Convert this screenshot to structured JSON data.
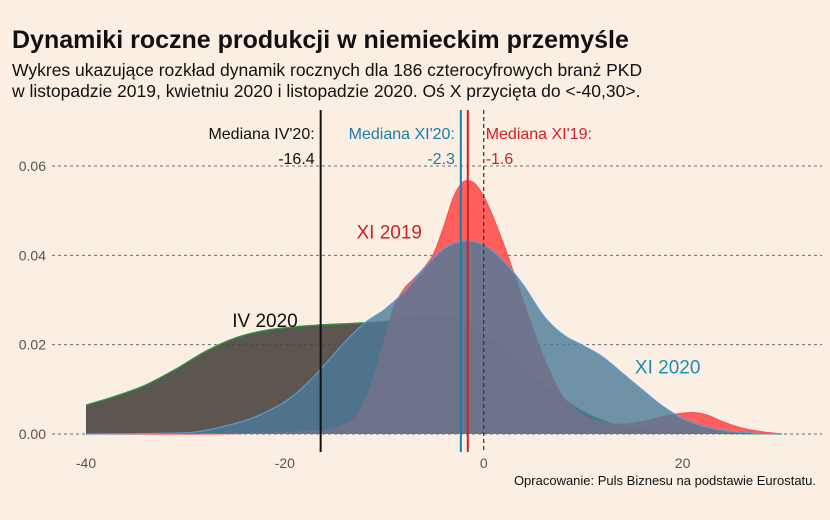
{
  "title": "Dynamiki roczne produkcji w niemieckim przemyśle",
  "subtitle_line1": "Wykres ukazujące rozkład dynamik rocznych dla 186 czterocyfrowych branż PKD",
  "subtitle_line2": "w listopadzie 2019, kwietniu 2020 i listopadzie 2020. Oś X przycięta do <-40,30>.",
  "caption": "Opracowanie: Puls Biznesu na podstawie Eurostatu.",
  "chart_data": {
    "type": "area",
    "subtype": "density",
    "xlim": [
      -40,
      30
    ],
    "ylim": [
      0,
      0.062
    ],
    "x_ticks": [
      -40,
      -20,
      0,
      20
    ],
    "y_ticks": [
      0,
      0.02,
      0.04,
      0.06
    ],
    "x_tick_labels": [
      "-40",
      "-20",
      "0",
      "20"
    ],
    "y_tick_labels": [
      "0.00",
      "0.02",
      "0.04",
      "0.06"
    ],
    "grid": "horizontal-dashed",
    "series": [
      {
        "name": "IV 2020",
        "fill": "#4a4440",
        "stroke": "#2e9e3a",
        "opacity": 0.9,
        "label_at": [
          -22,
          0.024
        ],
        "label_color": "#111111",
        "points": [
          [
            -40,
            0.0065
          ],
          [
            -37,
            0.0085
          ],
          [
            -34,
            0.011
          ],
          [
            -31,
            0.0145
          ],
          [
            -28,
            0.0185
          ],
          [
            -25,
            0.0215
          ],
          [
            -22,
            0.0232
          ],
          [
            -19,
            0.024
          ],
          [
            -16,
            0.0245
          ],
          [
            -13,
            0.0248
          ],
          [
            -10,
            0.0252
          ],
          [
            -8,
            0.0259
          ],
          [
            -6,
            0.0265
          ],
          [
            -4,
            0.0264
          ],
          [
            -2,
            0.0252
          ],
          [
            0,
            0.0225
          ],
          [
            2,
            0.019
          ],
          [
            4,
            0.0148
          ],
          [
            6,
            0.011
          ],
          [
            8,
            0.0078
          ],
          [
            10,
            0.005
          ],
          [
            12,
            0.003
          ],
          [
            14,
            0.0015
          ],
          [
            16,
            0.0008
          ],
          [
            20,
            0.0003
          ],
          [
            25,
            0.0001
          ],
          [
            30,
            0
          ]
        ]
      },
      {
        "name": "XI 2019",
        "fill": "#ff5050",
        "stroke": "#ff5050",
        "opacity": 0.9,
        "label_at": [
          -9.5,
          0.0438
        ],
        "label_color": "#d42020",
        "points": [
          [
            -40,
            0
          ],
          [
            -30,
            0
          ],
          [
            -25,
            0.0001
          ],
          [
            -20,
            0.0003
          ],
          [
            -17,
            0.0007
          ],
          [
            -15,
            0.0012
          ],
          [
            -13,
            0.0035
          ],
          [
            -12,
            0.007
          ],
          [
            -11,
            0.013
          ],
          [
            -10,
            0.021
          ],
          [
            -9,
            0.0285
          ],
          [
            -8,
            0.0325
          ],
          [
            -7,
            0.0348
          ],
          [
            -6,
            0.0372
          ],
          [
            -5,
            0.0405
          ],
          [
            -4,
            0.0465
          ],
          [
            -3,
            0.0532
          ],
          [
            -2,
            0.0565
          ],
          [
            -1,
            0.0562
          ],
          [
            0,
            0.0532
          ],
          [
            1,
            0.0482
          ],
          [
            2,
            0.0425
          ],
          [
            3,
            0.0362
          ],
          [
            4,
            0.0295
          ],
          [
            5,
            0.0232
          ],
          [
            6,
            0.0172
          ],
          [
            7,
            0.0122
          ],
          [
            8,
            0.0082
          ],
          [
            10,
            0.0042
          ],
          [
            12,
            0.0025
          ],
          [
            14,
            0.0022
          ],
          [
            16,
            0.0028
          ],
          [
            18,
            0.0038
          ],
          [
            19.5,
            0.0045
          ],
          [
            21,
            0.0048
          ],
          [
            22.5,
            0.0042
          ],
          [
            24,
            0.0028
          ],
          [
            26,
            0.0013
          ],
          [
            28,
            0.0005
          ],
          [
            30,
            0
          ]
        ]
      },
      {
        "name": "XI 2020",
        "fill": "#4c7a98",
        "stroke": "#5a9bd8",
        "opacity": 0.8,
        "label_at": [
          18.5,
          0.0136
        ],
        "label_color": "#1a8fb5",
        "points": [
          [
            -40,
            0
          ],
          [
            -35,
            0.0001
          ],
          [
            -30,
            0.0003
          ],
          [
            -28,
            0.0008
          ],
          [
            -26,
            0.0018
          ],
          [
            -24,
            0.003
          ],
          [
            -22,
            0.0048
          ],
          [
            -20,
            0.0072
          ],
          [
            -18,
            0.0108
          ],
          [
            -16,
            0.0155
          ],
          [
            -14,
            0.0205
          ],
          [
            -12,
            0.0248
          ],
          [
            -10,
            0.0278
          ],
          [
            -8,
            0.0318
          ],
          [
            -6,
            0.037
          ],
          [
            -4,
            0.0415
          ],
          [
            -2,
            0.0432
          ],
          [
            0,
            0.0423
          ],
          [
            2,
            0.0387
          ],
          [
            4,
            0.0333
          ],
          [
            6,
            0.0265
          ],
          [
            8,
            0.0222
          ],
          [
            10,
            0.0198
          ],
          [
            12,
            0.0172
          ],
          [
            14,
            0.0135
          ],
          [
            16,
            0.0098
          ],
          [
            18,
            0.0062
          ],
          [
            20,
            0.0035
          ],
          [
            22,
            0.0018
          ],
          [
            24,
            0.0008
          ],
          [
            26,
            0.0004
          ],
          [
            28,
            0.0001
          ],
          [
            30,
            0
          ]
        ]
      }
    ],
    "vlines": [
      {
        "label": "Mediana IV'20:",
        "value_label": "-16.4",
        "x": -16.4,
        "color": "#111111",
        "style": "solid"
      },
      {
        "label": "Mediana XI'20:",
        "value_label": "-2.3",
        "x": -2.3,
        "color": "#1a7fa8",
        "style": "solid"
      },
      {
        "label": "Mediana XI'19:",
        "value_label": "-1.6",
        "x": -1.6,
        "color": "#d42020",
        "style": "solid"
      },
      {
        "x": 0,
        "color": "#333333",
        "style": "dashed"
      }
    ]
  }
}
